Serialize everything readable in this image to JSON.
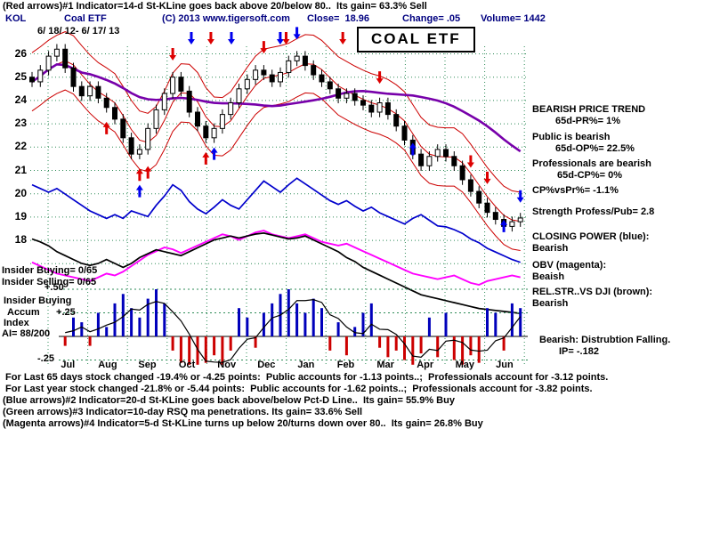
{
  "colors": {
    "navy": "#000080",
    "blue_line": "#0000cc",
    "magenta_line": "#ff00ff",
    "purple_ma": "#7700aa",
    "red_band": "#cc0000",
    "hist_blue": "#0000bb",
    "hist_red": "#cc0000",
    "grid": "#2e8b57",
    "arrow_red": "#dd0000",
    "arrow_blue": "#0000ee"
  },
  "header": {
    "line1": "(Red arrows)#1 Indicator=14-d St-KLine goes back above 20/below 80..  Its gain= 63.3% Sell",
    "symbol": "KOL",
    "name": "Coal ETF",
    "copyright": "(C) 2013 www.tigersoft.com",
    "close": "Close=  18.96",
    "change": "Change= .05",
    "volume": "Volume= 1442",
    "date_range": "6/ 18/ 12- 6/ 17/ 13",
    "title_box": "COAL ETF"
  },
  "left_labels": {
    "insider_buying": "Insider Buying= 0/65",
    "insider_selling": "Insider Selling= 0/65",
    "hist_top_tick": "+.50",
    "accum_line1": "Insider Buying",
    "accum_line2": "Accum      +.25",
    "accum_line3": "Index",
    "accum_line4": "AI= 88/200",
    "hist_bottom_tick": "-.25"
  },
  "right_panel": {
    "lines": [
      "BEARISH PRICE TREND",
      "65d-PR%= 1%",
      "Public is bearish",
      "65d-OP%= 22.5%",
      "Professionals are bearish",
      "65d-CP%= 0%",
      "CP%vsPr%= -1.1%",
      "Strength Profess/Pub= 2.8",
      "CLOSING POWER (blue):",
      "Bearish",
      "OBV (magenta):",
      "Beaish",
      "REL.STR..VS DJI (brown):",
      "Bearish",
      "Bearish: Distrubtion Falling.",
      "IP= -.182"
    ]
  },
  "footer_lines": [
    " For Last 65 days stock changed -19.4% or -4.25 points:  Public accounts for -1.13 points..;  Professionals account for -3.12 points.",
    " For Last year stock changed -21.8% or -5.44 points:  Public accounts for -1.62 points..;  Professionals account for -3.82 points.",
    "(Blue arrows)#2 Indicator=20-d St-KLine goes back above/below Pct-D Line..  Its gain= 55.9% Buy",
    "(Green arrows)#3 Indicator=10-day RSQ ma penetrations. Its gain= 33.6% Sell",
    "(Magenta arrows)#4 Indicator=5-d St-KLine turns up below 20/turns down over 80..  Its gain= 26.8% Buy"
  ],
  "chart_data": {
    "type": "candlestick+line+histogram",
    "title": "COAL ETF",
    "symbol": "KOL",
    "date_range": "6/ 18/ 12- 6/ 17/ 13",
    "last_close": 18.96,
    "change": 0.05,
    "volume": 1442,
    "ylim": [
      17.5,
      26.5
    ],
    "price_ticks": [
      "26",
      "25",
      "24",
      "23",
      "22",
      "21",
      "20",
      "19",
      "18"
    ],
    "months": [
      "Jul",
      "Aug",
      "Sep",
      "Oct",
      "Nov",
      "Dec",
      "Jan",
      "Feb",
      "Mar",
      "Apr",
      "May",
      "Jun"
    ],
    "series_legend": {
      "price": "KOL candles with red bands and purple long moving average",
      "closing_power": "CLOSING POWER (blue)",
      "obv": "OBV (magenta)",
      "rel_str": "REL.STR. VS DJI (brown/black)",
      "accum_index": "Tiger Accumulation Index histogram (AI= 88/200)"
    },
    "closes": [
      24.8,
      25.3,
      25.9,
      26.2,
      25.4,
      24.6,
      24.2,
      24.6,
      24.1,
      23.7,
      23.2,
      22.4,
      21.7,
      21.9,
      22.8,
      23.6,
      24.3,
      25.0,
      24.4,
      23.5,
      22.9,
      22.4,
      22.8,
      23.4,
      23.9,
      24.5,
      24.9,
      25.3,
      25.1,
      24.8,
      25.2,
      25.7,
      25.9,
      25.5,
      25.1,
      24.8,
      24.5,
      24.1,
      24.3,
      24.0,
      23.8,
      23.5,
      23.9,
      23.4,
      22.9,
      22.3,
      21.7,
      21.2,
      21.6,
      21.9,
      21.6,
      21.2,
      20.6,
      20.1,
      19.6,
      19.2,
      18.9,
      18.6,
      18.8,
      18.96
    ],
    "closing_power": [
      88,
      84,
      80,
      84,
      78,
      72,
      66,
      60,
      56,
      52,
      56,
      52,
      60,
      57,
      54,
      66,
      76,
      88,
      82,
      70,
      62,
      57,
      64,
      72,
      66,
      62,
      72,
      82,
      92,
      86,
      80,
      88,
      95,
      89,
      83,
      77,
      71,
      67,
      71,
      65,
      60,
      64,
      58,
      54,
      50,
      46,
      52,
      56,
      50,
      44,
      43,
      40,
      36,
      30,
      26,
      20,
      16,
      12,
      8,
      5
    ],
    "obv": [
      64,
      60,
      56,
      52,
      50,
      48,
      46,
      44,
      48,
      52,
      50,
      54,
      60,
      66,
      72,
      76,
      80,
      78,
      74,
      78,
      82,
      86,
      90,
      94,
      92,
      88,
      92,
      96,
      98,
      94,
      92,
      90,
      92,
      94,
      90,
      86,
      84,
      82,
      84,
      80,
      76,
      72,
      68,
      64,
      60,
      56,
      52,
      50,
      48,
      46,
      48,
      50,
      46,
      42,
      40,
      44,
      46,
      48,
      50,
      48
    ],
    "rel_str": [
      85,
      82,
      78,
      72,
      68,
      64,
      60,
      58,
      60,
      64,
      60,
      56,
      60,
      66,
      70,
      74,
      72,
      70,
      68,
      72,
      76,
      80,
      84,
      86,
      88,
      86,
      88,
      90,
      91,
      89,
      87,
      85,
      86,
      88,
      84,
      80,
      76,
      72,
      66,
      62,
      56,
      52,
      48,
      44,
      40,
      36,
      32,
      28,
      26,
      24,
      22,
      20,
      18,
      16,
      14,
      13,
      12,
      11,
      10,
      9
    ],
    "hist_ylim": [
      -0.35,
      0.55
    ],
    "hist_ticks": [
      "+.50",
      "+.25",
      "-.25"
    ],
    "accum_index": [
      0.1,
      -0.05,
      0.15,
      0.1,
      -0.1,
      0.2,
      0.15,
      -0.1,
      0.25,
      0.1,
      0.35,
      0.45,
      0.3,
      0.2,
      0.4,
      0.5,
      0.35,
      -0.15,
      -0.28,
      -0.3,
      -0.3,
      -0.28,
      -0.2,
      -0.3,
      -0.15,
      0.3,
      0.2,
      -0.12,
      0.25,
      0.35,
      0.45,
      0.5,
      0.35,
      0.25,
      0.4,
      0.3,
      -0.15,
      0.15,
      -0.2,
      0.1,
      0.25,
      0.35,
      -0.12,
      -0.22,
      -0.15,
      -0.25,
      -0.3,
      -0.18,
      0.2,
      -0.22,
      0.25,
      -0.25,
      -0.3,
      -0.2,
      -0.28,
      0.3,
      0.25,
      -0.15,
      0.35,
      0.3
    ],
    "arrows": [
      {
        "i": 9,
        "price": 23.2,
        "dir": "up",
        "color": "red"
      },
      {
        "i": 13,
        "price": 21.2,
        "dir": "up",
        "color": "red"
      },
      {
        "i": 14,
        "price": 21.3,
        "dir": "up",
        "color": "red"
      },
      {
        "i": 13,
        "price": 20.5,
        "dir": "up",
        "color": "blue"
      },
      {
        "i": 21,
        "price": 21.9,
        "dir": "up",
        "color": "red"
      },
      {
        "i": 22,
        "price": 22.1,
        "dir": "up",
        "color": "blue"
      },
      {
        "i": 17,
        "price": 25.6,
        "dir": "down",
        "color": "red"
      },
      {
        "i": 28,
        "price": 25.9,
        "dir": "down",
        "color": "red"
      },
      {
        "i": 32,
        "price": 26.5,
        "dir": "down",
        "color": "blue"
      },
      {
        "i": 42,
        "price": 24.6,
        "dir": "down",
        "color": "red"
      },
      {
        "i": 46,
        "price": 22.3,
        "dir": "up",
        "color": "blue"
      },
      {
        "i": 53,
        "price": 21.0,
        "dir": "down",
        "color": "red"
      },
      {
        "i": 55,
        "price": 20.3,
        "dir": "down",
        "color": "red"
      },
      {
        "i": 57,
        "price": 19.0,
        "dir": "up",
        "color": "blue"
      },
      {
        "i": 59,
        "price": 19.5,
        "dir": "down",
        "color": "blue"
      }
    ],
    "top_arrows": [
      {
        "pos": 0.326,
        "color": "blue"
      },
      {
        "pos": 0.366,
        "color": "red"
      },
      {
        "pos": 0.408,
        "color": "blue"
      },
      {
        "pos": 0.508,
        "color": "blue"
      },
      {
        "pos": 0.52,
        "color": "red"
      },
      {
        "pos": 0.636,
        "color": "red"
      }
    ]
  }
}
